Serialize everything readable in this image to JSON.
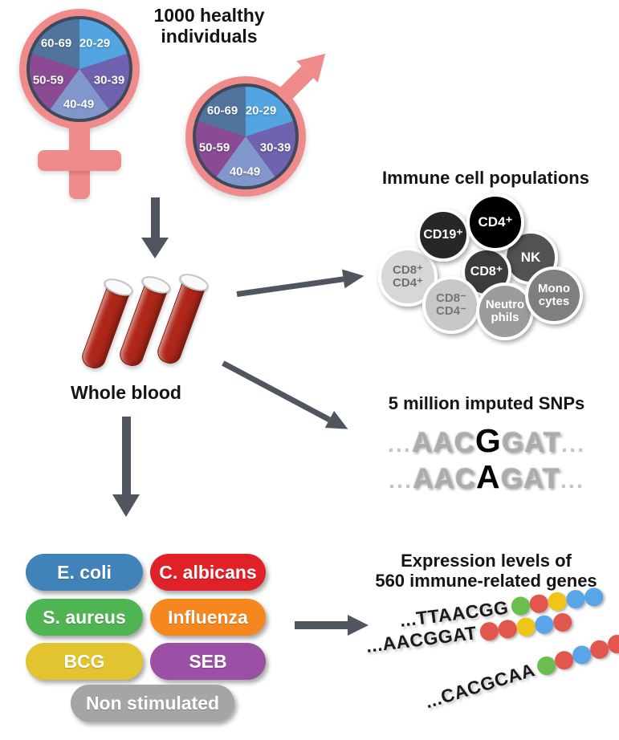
{
  "colors": {
    "gender_pink": "#EF8B8B",
    "arrow_gray": "#50565F",
    "tube_red": "#AE2719",
    "pie_border": "#3E4A5A"
  },
  "header": {
    "line1": "1000 healthy",
    "line2": "individuals"
  },
  "demographics": {
    "age_groups": [
      "20-29",
      "30-39",
      "40-49",
      "50-59",
      "60-69"
    ],
    "pie_colors": [
      "#52A5E0",
      "#6F62AE",
      "#8197CB",
      "#8A4B94",
      "#50749E"
    ],
    "symbols": [
      "female",
      "male"
    ]
  },
  "whole_blood": {
    "label": "Whole blood",
    "tube_count": 3
  },
  "immune_cells": {
    "title": "Immune cell populations",
    "cells": [
      {
        "id": "cd8pos-cd4pos",
        "label": "CD8⁺\nCD4⁺",
        "color": "#D7D7D7",
        "text_color": "#707070"
      },
      {
        "id": "cd19pos",
        "label": "CD19⁺",
        "color": "#272727",
        "text_color": "#FFFFFF"
      },
      {
        "id": "cd4pos",
        "label": "CD4⁺",
        "color": "#000000",
        "text_color": "#FFFFFF"
      },
      {
        "id": "nk",
        "label": "NK",
        "color": "#525252",
        "text_color": "#FFFFFF"
      },
      {
        "id": "cd8pos",
        "label": "CD8⁺",
        "color": "#3C3C3C",
        "text_color": "#FFFFFF"
      },
      {
        "id": "cd8neg-cd4neg",
        "label": "CD8⁻\nCD4⁻",
        "color": "#C8C8C8",
        "text_color": "#757575"
      },
      {
        "id": "neutrophils",
        "label": "Neutro\nphils",
        "color": "#9B9B9B",
        "text_color": "#FFFFFF"
      },
      {
        "id": "monocytes",
        "label": "Mono\ncytes",
        "color": "#7F7F7F",
        "text_color": "#FFFFFF"
      }
    ]
  },
  "snps": {
    "title": "5 million imputed SNPs",
    "sequences": [
      {
        "prefix": "...",
        "pre": "AAC",
        "snp": "G",
        "post": "GAT",
        "suffix": "..."
      },
      {
        "prefix": "...",
        "pre": "AAC",
        "snp": "A",
        "post": "GAT",
        "suffix": "..."
      }
    ]
  },
  "stimuli": {
    "items": [
      {
        "label": "E. coli",
        "color": "#4183B8"
      },
      {
        "label": "C. albicans",
        "color": "#E02127"
      },
      {
        "label": "S. aureus",
        "color": "#4FB553"
      },
      {
        "label": "Influenza",
        "color": "#F6871F"
      },
      {
        "label": "BCG",
        "color": "#E2C431"
      },
      {
        "label": "SEB",
        "color": "#9C50A5"
      },
      {
        "label": "Non stimulated",
        "color": "#A5A5A5"
      }
    ]
  },
  "expression": {
    "title_line1": "Expression levels of",
    "title_line2": "560 immune-related genes",
    "dot_colors": {
      "green": "#6ABD4F",
      "red": "#E2574D",
      "yellow": "#F0C419",
      "blue": "#58A6E8"
    },
    "rows": [
      {
        "sequence": "...TTAACGG",
        "dots": [
          "green",
          "red",
          "yellow",
          "blue",
          "blue"
        ]
      },
      {
        "sequence": "...AACGGAT",
        "dots": [
          "red",
          "red",
          "yellow",
          "blue",
          "red"
        ]
      },
      {
        "sequence": "...CACGCAA",
        "dots": [
          "green",
          "red",
          "blue",
          "red",
          "red"
        ]
      }
    ]
  }
}
